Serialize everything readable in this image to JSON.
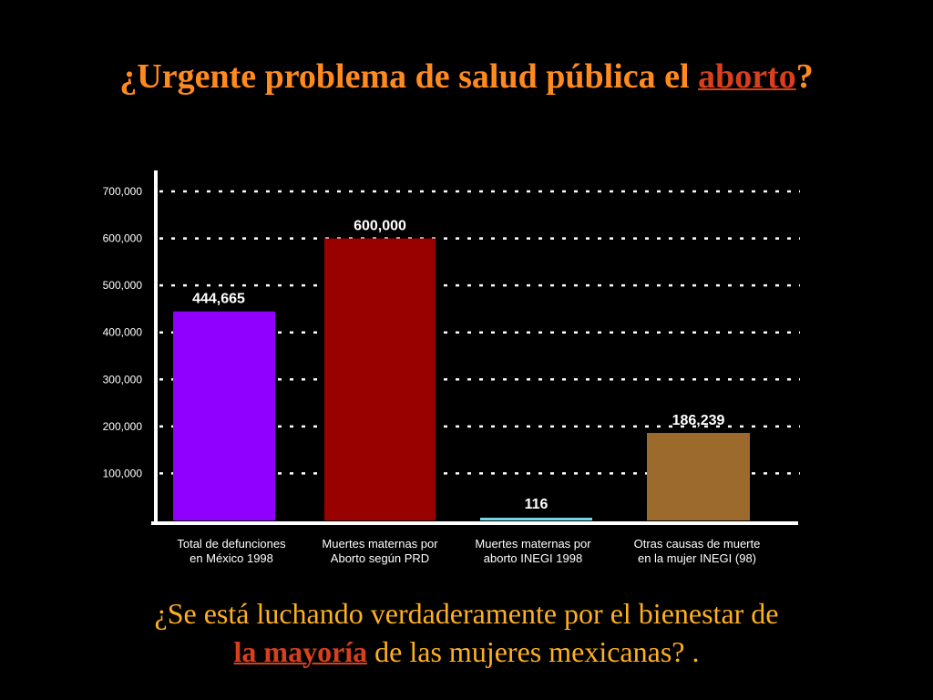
{
  "title": {
    "prefix": "¿Urgente problema de salud pública el ",
    "highlight": "aborto",
    "suffix": "?"
  },
  "chart_data": {
    "type": "bar",
    "categories": [
      [
        "Total de defunciones",
        "en México  1998"
      ],
      [
        "Muertes maternas por",
        "Aborto según PRD"
      ],
      [
        "Muertes maternas por",
        "aborto INEGI  1998"
      ],
      [
        "Otras causas de muerte",
        "en la mujer INEGI (98)"
      ]
    ],
    "values": [
      444665,
      600000,
      116,
      186239
    ],
    "data_labels": [
      "444,665",
      "600,000",
      "116",
      "186,239"
    ],
    "bar_colors": [
      "#8f00ff",
      "#990000",
      "#6fd6e8",
      "#9c6a2c"
    ],
    "yticks": [
      100000,
      200000,
      300000,
      400000,
      500000,
      600000,
      700000
    ],
    "ytick_labels": [
      "100,000",
      "200,000",
      "300,000",
      "400,000",
      "500,000",
      "600,000",
      "700,000"
    ],
    "ylim": [
      0,
      700000
    ],
    "grid": "dotted horizontal",
    "xlabel": "",
    "ylabel": ""
  },
  "bottom": {
    "line1": "¿Se está luchando verdaderamente por el bienestar de",
    "line2_highlight": "la mayoría",
    "line2_rest": " de las mujeres mexicanas? ."
  }
}
